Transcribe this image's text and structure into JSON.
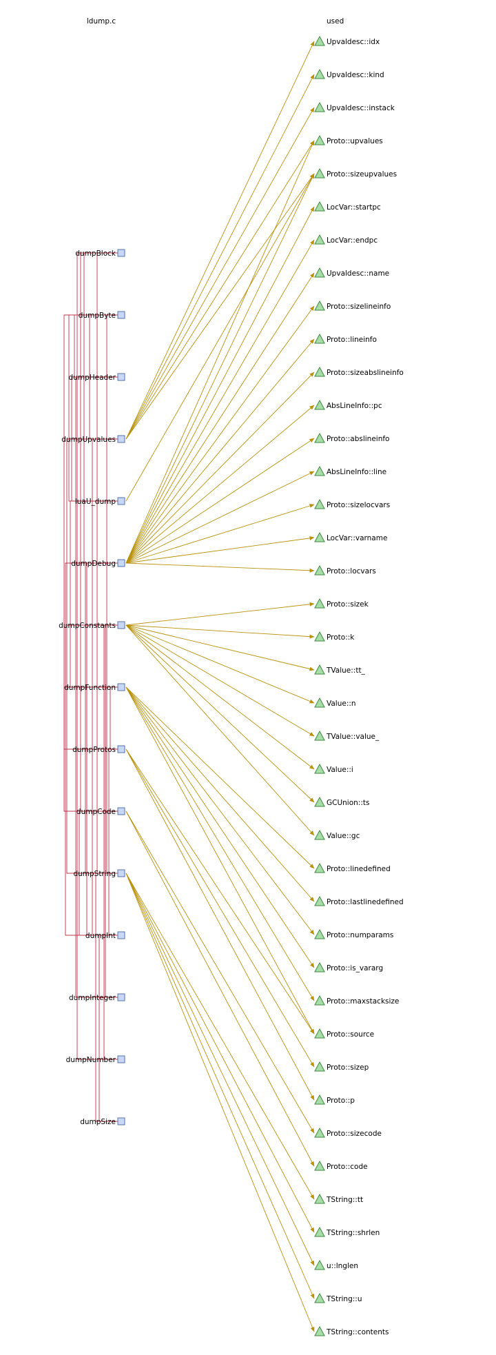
{
  "source_column_label": "ldump.c",
  "target_column_label": "used",
  "colors": {
    "call_line": "#c0304a",
    "use_arrow": "#b8900a",
    "func_box_fill": "#c8d8f4",
    "func_box_stroke": "#5570b0",
    "triangle_fill": "#a8dca8",
    "triangle_stroke": "#3a8a3a"
  },
  "functions": [
    {
      "id": "dumpBlock",
      "label": "dumpBlock"
    },
    {
      "id": "dumpByte",
      "label": "dumpByte"
    },
    {
      "id": "dumpHeader",
      "label": "dumpHeader"
    },
    {
      "id": "dumpUpvalues",
      "label": "dumpUpvalues"
    },
    {
      "id": "luaU_dump",
      "label": "luaU_dump"
    },
    {
      "id": "dumpDebug",
      "label": "dumpDebug"
    },
    {
      "id": "dumpConstants",
      "label": "dumpConstants"
    },
    {
      "id": "dumpFunction",
      "label": "dumpFunction"
    },
    {
      "id": "dumpProtos",
      "label": "dumpProtos"
    },
    {
      "id": "dumpCode",
      "label": "dumpCode"
    },
    {
      "id": "dumpString",
      "label": "dumpString"
    },
    {
      "id": "dumpInt",
      "label": "dumpInt"
    },
    {
      "id": "dumpInteger",
      "label": "dumpInteger"
    },
    {
      "id": "dumpNumber",
      "label": "dumpNumber"
    },
    {
      "id": "dumpSize",
      "label": "dumpSize"
    }
  ],
  "used": [
    "Upvaldesc::idx",
    "Upvaldesc::kind",
    "Upvaldesc::instack",
    "Proto::upvalues",
    "Proto::sizeupvalues",
    "LocVar::startpc",
    "LocVar::endpc",
    "Upvaldesc::name",
    "Proto::sizelineinfo",
    "Proto::lineinfo",
    "Proto::sizeabslineinfo",
    "AbsLineInfo::pc",
    "Proto::abslineinfo",
    "AbsLineInfo::line",
    "Proto::sizelocvars",
    "LocVar::varname",
    "Proto::locvars",
    "Proto::sizek",
    "Proto::k",
    "TValue::tt_",
    "Value::n",
    "TValue::value_",
    "Value::i",
    "GCUnion::ts",
    "Value::gc",
    "Proto::linedefined",
    "Proto::lastlinedefined",
    "Proto::numparams",
    "Proto::is_vararg",
    "Proto::maxstacksize",
    "Proto::source",
    "Proto::sizep",
    "Proto::p",
    "Proto::sizecode",
    "Proto::code",
    "TString::tt",
    "TString::shrlen",
    "u::lnglen",
    "TString::u",
    "TString::contents"
  ],
  "uses": [
    {
      "from": "dumpUpvalues",
      "to": [
        "Upvaldesc::idx",
        "Upvaldesc::kind",
        "Upvaldesc::instack",
        "Proto::upvalues",
        "Proto::sizeupvalues"
      ]
    },
    {
      "from": "luaU_dump",
      "to": [
        "Proto::sizeupvalues"
      ]
    },
    {
      "from": "dumpDebug",
      "to": [
        "Proto::upvalues",
        "Proto::sizeupvalues",
        "LocVar::startpc",
        "LocVar::endpc",
        "Upvaldesc::name",
        "Proto::sizelineinfo",
        "Proto::lineinfo",
        "Proto::sizeabslineinfo",
        "AbsLineInfo::pc",
        "Proto::abslineinfo",
        "AbsLineInfo::line",
        "Proto::sizelocvars",
        "LocVar::varname",
        "Proto::locvars"
      ]
    },
    {
      "from": "dumpConstants",
      "to": [
        "Proto::sizek",
        "Proto::k",
        "TValue::tt_",
        "Value::n",
        "TValue::value_",
        "Value::i",
        "GCUnion::ts",
        "Value::gc"
      ]
    },
    {
      "from": "dumpFunction",
      "to": [
        "Proto::linedefined",
        "Proto::lastlinedefined",
        "Proto::numparams",
        "Proto::is_vararg",
        "Proto::maxstacksize",
        "Proto::source"
      ]
    },
    {
      "from": "dumpProtos",
      "to": [
        "Proto::source",
        "Proto::sizep",
        "Proto::p"
      ]
    },
    {
      "from": "dumpCode",
      "to": [
        "Proto::sizecode",
        "Proto::code"
      ]
    },
    {
      "from": "dumpString",
      "to": [
        "TString::tt",
        "TString::shrlen",
        "u::lnglen",
        "TString::u",
        "TString::contents"
      ]
    }
  ],
  "calls": [
    {
      "from": "dumpFunction",
      "to": "dumpByte"
    },
    {
      "from": "dumpFunction",
      "to": "dumpInt"
    },
    {
      "from": "dumpFunction",
      "to": "dumpString"
    },
    {
      "from": "dumpFunction",
      "to": "dumpCode"
    },
    {
      "from": "dumpFunction",
      "to": "dumpConstants"
    },
    {
      "from": "dumpFunction",
      "to": "dumpUpvalues"
    },
    {
      "from": "dumpFunction",
      "to": "dumpProtos"
    },
    {
      "from": "dumpFunction",
      "to": "dumpDebug"
    },
    {
      "from": "luaU_dump",
      "to": "dumpHeader"
    },
    {
      "from": "luaU_dump",
      "to": "dumpByte"
    },
    {
      "from": "luaU_dump",
      "to": "dumpFunction"
    },
    {
      "from": "dumpHeader",
      "to": "dumpBlock"
    },
    {
      "from": "dumpHeader",
      "to": "dumpByte"
    },
    {
      "from": "dumpHeader",
      "to": "dumpInteger"
    },
    {
      "from": "dumpHeader",
      "to": "dumpNumber"
    },
    {
      "from": "dumpCode",
      "to": "dumpInt"
    },
    {
      "from": "dumpCode",
      "to": "dumpBlock"
    },
    {
      "from": "dumpDebug",
      "to": "dumpInt"
    },
    {
      "from": "dumpDebug",
      "to": "dumpBlock"
    },
    {
      "from": "dumpDebug",
      "to": "dumpString"
    },
    {
      "from": "dumpUpvalues",
      "to": "dumpInt"
    },
    {
      "from": "dumpUpvalues",
      "to": "dumpByte"
    },
    {
      "from": "dumpString",
      "to": "dumpSize"
    },
    {
      "from": "dumpString",
      "to": "dumpBlock"
    },
    {
      "from": "dumpInt",
      "to": "dumpSize"
    },
    {
      "from": "dumpConstants",
      "to": "dumpInt"
    },
    {
      "from": "dumpConstants",
      "to": "dumpByte"
    },
    {
      "from": "dumpConstants",
      "to": "dumpNumber"
    },
    {
      "from": "dumpConstants",
      "to": "dumpInteger"
    },
    {
      "from": "dumpConstants",
      "to": "dumpString"
    },
    {
      "from": "dumpProtos",
      "to": "dumpInt"
    },
    {
      "from": "dumpProtos",
      "to": "dumpFunction"
    }
  ]
}
